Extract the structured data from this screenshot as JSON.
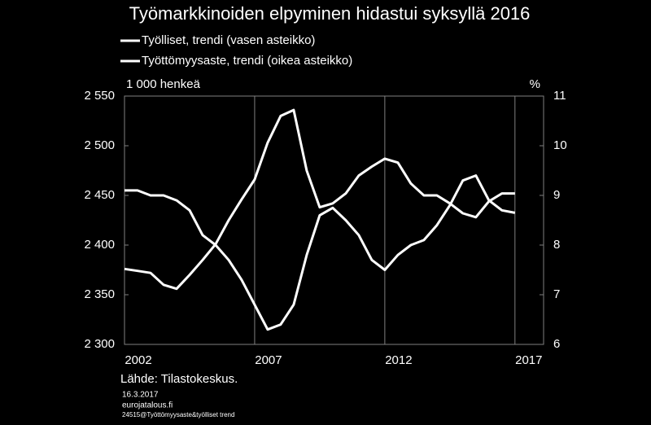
{
  "chart_data": {
    "type": "line",
    "title": "Työmarkkinoiden elpyminen hidastui syksyllä 2016",
    "y_label": "1 000 henkeä",
    "y2_label": "%",
    "source": "Lähde:  Tilastokeskus.",
    "footnotes": [
      "16.3.2017",
      "eurojatalous.fi",
      "24515@Työttömyysaste&työlliset trend"
    ],
    "x": [
      2002,
      2002.5,
      2003,
      2003.5,
      2004,
      2004.5,
      2005,
      2005.5,
      2006,
      2006.5,
      2007,
      2007.5,
      2008,
      2008.5,
      2009,
      2009.5,
      2010,
      2010.5,
      2011,
      2011.5,
      2012,
      2012.5,
      2013,
      2013.5,
      2014,
      2014.5,
      2015,
      2015.5,
      2016,
      2016.5,
      2017
    ],
    "series": [
      {
        "name": "Työlliset, trendi (vasen asteikko)",
        "color": "#ffffff",
        "axis": "y",
        "values": [
          2376,
          2374,
          2372,
          2360,
          2356,
          2370,
          2385,
          2401,
          2425,
          2446,
          2466,
          2503,
          2530,
          2536,
          2475,
          2438,
          2442,
          2452,
          2470,
          2479,
          2487,
          2483,
          2462,
          2450,
          2450,
          2442,
          2432,
          2428,
          2444,
          2452,
          2452
        ]
      },
      {
        "name": "Työttömyysaste, trendi (oikea asteikko)",
        "color": "#ffffff",
        "axis": "y2",
        "values": [
          9.1,
          9.1,
          9.0,
          9.0,
          8.9,
          8.7,
          8.2,
          8.0,
          7.7,
          7.3,
          6.8,
          6.3,
          6.4,
          6.8,
          7.8,
          8.6,
          8.75,
          8.5,
          8.2,
          7.7,
          7.5,
          7.8,
          8.0,
          8.1,
          8.4,
          8.8,
          9.3,
          9.4,
          8.9,
          8.7,
          8.65
        ]
      }
    ],
    "xlim": [
      2002,
      2018.1
    ],
    "xticks": [
      2002,
      2007,
      2012,
      2017
    ],
    "ylim": [
      2300,
      2550
    ],
    "yticks": [
      {
        "value": 2300,
        "label": "2 300"
      },
      {
        "value": 2350,
        "label": "2 350"
      },
      {
        "value": 2400,
        "label": "2 400"
      },
      {
        "value": 2450,
        "label": "2 450"
      },
      {
        "value": 2500,
        "label": "2 500"
      },
      {
        "value": 2550,
        "label": "2 550"
      }
    ],
    "y2lim": [
      6,
      11
    ],
    "y2ticks": [
      6,
      7,
      8,
      9,
      10,
      11
    ],
    "grid": true
  }
}
